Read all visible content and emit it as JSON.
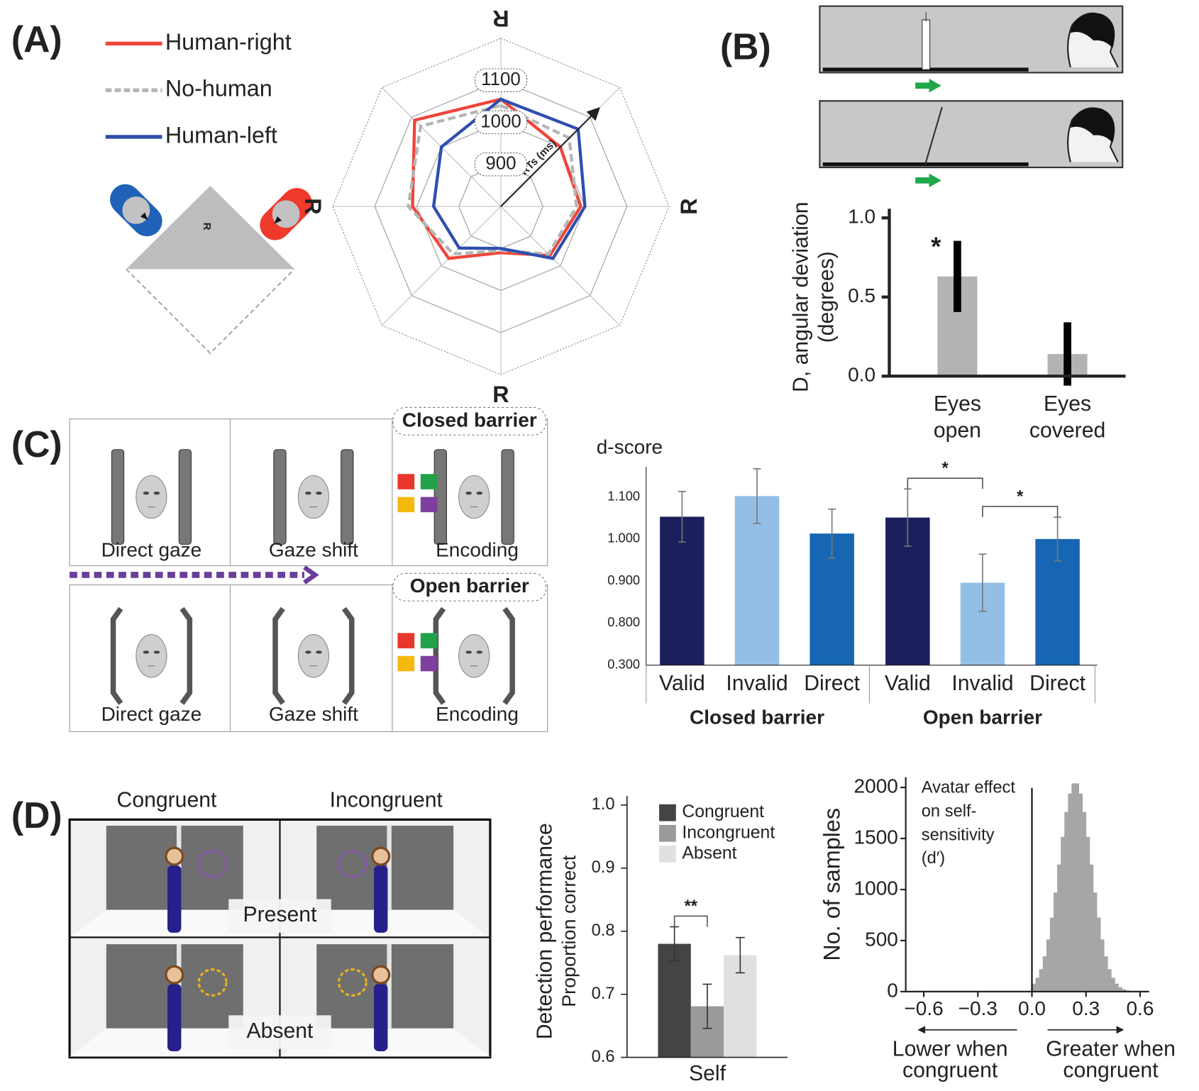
{
  "figure": {
    "panel_labels": [
      "(A)",
      "(B)",
      "(C)",
      "(D)"
    ],
    "A": {
      "triangle_label": "R"
    },
    "C": {
      "conditions": [
        {
          "label": "Closed barrier",
          "steps": [
            "Direct gaze",
            "Gaze shift",
            "Encoding"
          ]
        },
        {
          "label": "Open barrier",
          "steps": [
            "Direct gaze",
            "Gaze shift",
            "Encoding"
          ]
        }
      ]
    },
    "D": {
      "columns": [
        "Congruent",
        "Incongruent"
      ],
      "rows": [
        "Present",
        "Absent"
      ]
    }
  },
  "chart_data": [
    {
      "type": "radar",
      "categories": [
        "R",
        null,
        "R",
        null,
        "R",
        null,
        "R",
        null
      ],
      "rlim": [
        800,
        1200
      ],
      "rticks": [
        900,
        1000,
        1100
      ],
      "axis_label": "RTs (ms)",
      "series": [
        {
          "name": "Human-right",
          "color": "#f0443a",
          "values": [
            1055,
            1000,
            990,
            965,
            910,
            975,
            1010,
            1090
          ]
        },
        {
          "name": "No-human",
          "color": "#b5b5b5",
          "dash": true,
          "values": [
            1040,
            1030,
            980,
            960,
            905,
            960,
            1020,
            1070
          ]
        },
        {
          "name": "Human-left",
          "color": "#2f4fae",
          "values": [
            1055,
            1060,
            1000,
            975,
            900,
            940,
            960,
            1000
          ]
        }
      ]
    },
    {
      "type": "bar",
      "categories": [
        "Eyes open",
        "Eyes covered"
      ],
      "values": [
        0.63,
        0.14
      ],
      "errors": [
        0.225,
        0.2
      ],
      "color": "#b3b3b3",
      "ylim": [
        0,
        1
      ],
      "yticks": [
        {
          "value": 0,
          "label": "0.0"
        },
        0.5,
        {
          "value": 1,
          "label": "1.0"
        }
      ],
      "ylabel": "D, angular deviation (degrees)",
      "annotations": [
        {
          "text": "*",
          "bar": 0
        }
      ]
    },
    {
      "type": "bar",
      "title": "d-score",
      "groups": [
        {
          "label": "Closed barrier",
          "categories": [
            "Valid",
            "Invalid",
            "Direct"
          ],
          "values": [
            1.053,
            1.102,
            1.013
          ],
          "errors": [
            0.06,
            0.065,
            0.058
          ]
        },
        {
          "label": "Open barrier",
          "categories": [
            "Valid",
            "Invalid",
            "Direct"
          ],
          "values": [
            1.051,
            0.896,
            1.0
          ],
          "errors": [
            0.068,
            0.068,
            0.052
          ]
        }
      ],
      "colors": [
        "#1b1f5c",
        "#93bfe6",
        "#1766b3"
      ],
      "ylim": [
        0.3,
        1.15
      ],
      "ybreak": [
        0.3,
        0.7
      ],
      "yticks": [
        {
          "value": 0.3,
          "label": "0.300"
        },
        {
          "value": 0.8,
          "label": "0.800"
        },
        {
          "value": 0.9,
          "label": "0.900"
        },
        {
          "value": 1.0,
          "label": "1.000"
        },
        {
          "value": 1.1,
          "label": "1.100"
        }
      ],
      "annotations": [
        {
          "text": "*",
          "bars": [
            3,
            4
          ]
        },
        {
          "text": "*",
          "bars": [
            4,
            5
          ]
        }
      ]
    },
    {
      "type": "bar",
      "categories": [
        "Self"
      ],
      "series": [
        {
          "name": "Congruent",
          "color": "#444444",
          "values": [
            0.78
          ],
          "errors": [
            0.027
          ]
        },
        {
          "name": "Incongruent",
          "color": "#9a9a9a",
          "values": [
            0.681
          ],
          "errors": [
            0.035
          ]
        },
        {
          "name": "Absent",
          "color": "#e0e0e0",
          "values": [
            0.762
          ],
          "errors": [
            0.028
          ]
        }
      ],
      "ylim": [
        0.6,
        1.0
      ],
      "yticks": [
        {
          "value": 0.6,
          "label": "0.6"
        },
        0.7,
        0.8,
        0.9,
        {
          "value": 1.0,
          "label": "1.0"
        }
      ],
      "ylabel": "Detection performance",
      "ylabel2": "Proportion correct",
      "annotations": [
        {
          "text": "**",
          "bars": [
            0,
            1
          ]
        }
      ]
    },
    {
      "type": "histogram",
      "color": "#a6a6a6",
      "bins": [
        0,
        0.02,
        0.04,
        0.06,
        0.08,
        0.1,
        0.12,
        0.14,
        0.16,
        0.18,
        0.2,
        0.22,
        0.24,
        0.26,
        0.28,
        0.3,
        0.32,
        0.34,
        0.36,
        0.38,
        0.4,
        0.42,
        0.44,
        0.46,
        0.48,
        0.5,
        0.52,
        0.54,
        0.56
      ],
      "counts": [
        78,
        135,
        220,
        345,
        510,
        725,
        970,
        1245,
        1515,
        1760,
        1940,
        2040,
        2040,
        1940,
        1760,
        1515,
        1245,
        970,
        725,
        510,
        345,
        220,
        135,
        78,
        43,
        23,
        11,
        5
      ],
      "xlim": [
        -0.7,
        0.65
      ],
      "xticks": [
        {
          "value": -0.6,
          "label": "−0.6"
        },
        {
          "value": -0.3,
          "label": "−0.3"
        },
        {
          "value": 0,
          "label": "0.0"
        },
        0.3,
        0.6
      ],
      "ylim": [
        0,
        2100
      ],
      "yticks": [
        0,
        500,
        1000,
        1500,
        2000
      ],
      "ylabel": "No. of samples",
      "annotation": "Avatar effect on self-sensitivity (d′)",
      "left_note": "Lower when congruent",
      "right_note": "Greater when congruent"
    }
  ]
}
